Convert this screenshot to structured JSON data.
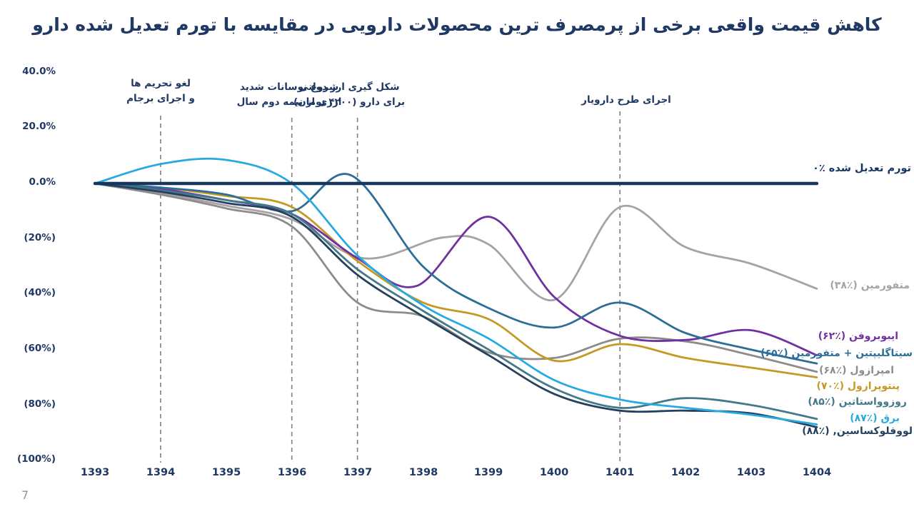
{
  "header": {
    "title": "کاهش قیمت واقعی برخی از پرمصرف ترین محصولات دارویی در مقایسه با تورم تعدیل شده دارو"
  },
  "footer": {
    "page_number": "7"
  },
  "colors": {
    "title_navy": "#1F3864",
    "annotation_gray": "#7F7F7F",
    "background": "#FFFFFF"
  },
  "chart_data": {
    "type": "line",
    "title": "کاهش قیمت واقعی برخی از پرمصرف ترین محصولات دارویی در مقایسه با تورم تعدیل شده دارو",
    "xlabel": "",
    "ylabel": "",
    "x_ticks": [
      "1393",
      "1394",
      "1395",
      "1396",
      "1397",
      "1398",
      "1399",
      "1400",
      "1401",
      "1402",
      "1403",
      "1404"
    ],
    "y_ticks": [
      "40.0%",
      "20.0%",
      "0.0%",
      "(20%)",
      "(40%)",
      "(60%)",
      "(80%)",
      "(100%)"
    ],
    "ylim": [
      -100,
      40
    ],
    "x_range": [
      1393,
      1404
    ],
    "grid": false,
    "legend_position": "right-of-lines",
    "annotations": [
      {
        "year": 1394,
        "line1": "لغو تحریم ها",
        "line2": "و اجرای برجام"
      },
      {
        "year": 1396,
        "line1": "شروع نوسانات شدید",
        "line2": "ارزی از نیمه دوم سال"
      },
      {
        "year": 1397,
        "line1": "شکل گیری ارز دولتی",
        "line2": "برای دارو (۴۲۰۰ تومان)"
      },
      {
        "year": 1401,
        "line1": "اجرای طرح دارویار",
        "line2": ""
      }
    ],
    "series": [
      {
        "name": "metformin",
        "label": "متفورمین (٪۳۸)",
        "final_drop_pct": 38,
        "color": "#A8A2A8",
        "width": 2.8,
        "points": [
          [
            1393,
            0
          ],
          [
            1394,
            -3.5
          ],
          [
            1395,
            -8
          ],
          [
            1396,
            -13
          ],
          [
            1397.1,
            -27
          ],
          [
            1398.3,
            -19.5
          ],
          [
            1399,
            -22
          ],
          [
            1400,
            -42
          ],
          [
            1401,
            -8.5
          ],
          [
            1402,
            -23
          ],
          [
            1403,
            -29
          ],
          [
            1404,
            -38
          ]
        ]
      },
      {
        "name": "omeprazole",
        "label": "امپرازول (٪۶۸)",
        "final_drop_pct": 68,
        "color": "#8C8C8C",
        "width": 2.8,
        "points": [
          [
            1393,
            0
          ],
          [
            1394,
            -4
          ],
          [
            1395,
            -9
          ],
          [
            1396,
            -15.5
          ],
          [
            1397,
            -43
          ],
          [
            1398,
            -48
          ],
          [
            1399,
            -61
          ],
          [
            1400,
            -63
          ],
          [
            1401,
            -56
          ],
          [
            1402,
            -57
          ],
          [
            1403,
            -62
          ],
          [
            1404,
            -68
          ]
        ]
      },
      {
        "name": "pantoprazole",
        "label": "پنتوپرازول (٪۷۰)",
        "final_drop_pct": 70,
        "color": "#C49A24",
        "width": 2.8,
        "points": [
          [
            1393,
            0
          ],
          [
            1394,
            -1.5
          ],
          [
            1395,
            -4.5
          ],
          [
            1396,
            -8.5
          ],
          [
            1397,
            -28
          ],
          [
            1398,
            -43
          ],
          [
            1399,
            -49
          ],
          [
            1400,
            -64
          ],
          [
            1401,
            -58
          ],
          [
            1402,
            -63
          ],
          [
            1403,
            -66.5
          ],
          [
            1404,
            -70
          ]
        ]
      },
      {
        "name": "ibuprofen",
        "label": "ایبوبروفن (٪۶۲)",
        "final_drop_pct": 62,
        "color": "#7030A0",
        "width": 2.8,
        "points": [
          [
            1393,
            0
          ],
          [
            1394,
            -2
          ],
          [
            1395,
            -6
          ],
          [
            1396,
            -11
          ],
          [
            1397,
            -27
          ],
          [
            1397.9,
            -37
          ],
          [
            1399,
            -12
          ],
          [
            1400,
            -41
          ],
          [
            1401,
            -55
          ],
          [
            1402,
            -56.5
          ],
          [
            1403,
            -53
          ],
          [
            1404,
            -62
          ]
        ]
      },
      {
        "name": "sitagliptin-metformin",
        "label": "سیتاگلیپتین + متفورمین (٪۶۵)",
        "final_drop_pct": 65,
        "color": "#2C6E97",
        "width": 2.8,
        "points": [
          [
            1393,
            0
          ],
          [
            1394,
            -1.5
          ],
          [
            1395,
            -4
          ],
          [
            1396,
            -10
          ],
          [
            1396.9,
            3
          ],
          [
            1398,
            -30
          ],
          [
            1399,
            -45
          ],
          [
            1400,
            -52
          ],
          [
            1401,
            -43
          ],
          [
            1402,
            -54
          ],
          [
            1403,
            -60
          ],
          [
            1404,
            -65
          ]
        ]
      },
      {
        "name": "rosuvastatin",
        "label": "روزوواستاتین (٪۸۵)",
        "final_drop_pct": 85,
        "color": "#44798A",
        "width": 2.8,
        "points": [
          [
            1393,
            0
          ],
          [
            1394,
            -2.5
          ],
          [
            1395,
            -6
          ],
          [
            1396,
            -11
          ],
          [
            1397,
            -31
          ],
          [
            1398,
            -46
          ],
          [
            1399,
            -60
          ],
          [
            1400,
            -74
          ],
          [
            1401,
            -81
          ],
          [
            1402,
            -77.5
          ],
          [
            1403,
            -80
          ],
          [
            1404,
            -85
          ]
        ]
      },
      {
        "name": "levofloxacin",
        "label": "لووفلوکساسین, (٪۸۸)",
        "final_drop_pct": 88,
        "color": "#26415E",
        "width": 2.8,
        "points": [
          [
            1393,
            0
          ],
          [
            1394,
            -3
          ],
          [
            1395,
            -7
          ],
          [
            1396,
            -12
          ],
          [
            1397,
            -33
          ],
          [
            1398,
            -48
          ],
          [
            1399,
            -62
          ],
          [
            1400,
            -76
          ],
          [
            1401,
            -82
          ],
          [
            1402,
            -82
          ],
          [
            1403,
            -83
          ],
          [
            1404,
            -88
          ]
        ]
      },
      {
        "name": "electricity",
        "label": "برق (٪۸۷)",
        "final_drop_pct": 87,
        "color": "#27AAE1",
        "width": 2.8,
        "points": [
          [
            1393,
            0
          ],
          [
            1394,
            7
          ],
          [
            1395,
            8.5
          ],
          [
            1396,
            0
          ],
          [
            1397,
            -26
          ],
          [
            1398,
            -44
          ],
          [
            1399,
            -56
          ],
          [
            1400,
            -71
          ],
          [
            1401,
            -78
          ],
          [
            1402,
            -81
          ],
          [
            1403,
            -83.5
          ],
          [
            1404,
            -87
          ]
        ]
      },
      {
        "name": "adjusted-inflation-baseline",
        "label": "تورم تعدیل شده ٪۰",
        "final_drop_pct": 0,
        "color": "#17365D",
        "width": 4.5,
        "points": [
          [
            1393,
            0
          ],
          [
            1404,
            0
          ]
        ]
      }
    ]
  }
}
